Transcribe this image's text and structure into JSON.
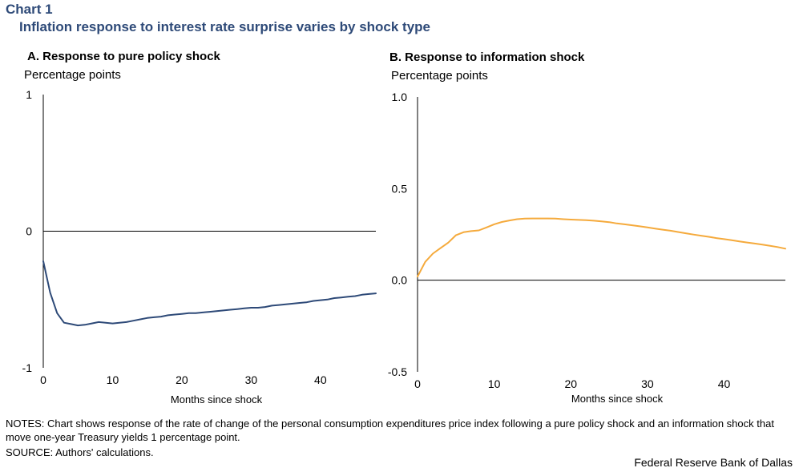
{
  "header": {
    "chart_label": "Chart 1",
    "title": "Inflation response to interest rate surprise varies by shock type"
  },
  "colors": {
    "panel_a_line": "#2e4a78",
    "panel_b_line": "#f5aa3c",
    "title": "#2e4a78"
  },
  "chart_data": [
    {
      "type": "line",
      "title": "A. Response to pure policy shock",
      "ylabel": "Percentage points",
      "xlabel": "Months since shock",
      "xlim": [
        0,
        48
      ],
      "ylim": [
        -1,
        1
      ],
      "x_ticks": [
        "0",
        "10",
        "20",
        "30",
        "40"
      ],
      "y_ticks": [
        "1",
        "0",
        "-1"
      ],
      "zero_line": true,
      "series": [
        {
          "x": [
            0,
            1,
            2,
            3,
            4,
            5,
            6,
            7,
            8,
            9,
            10,
            11,
            12,
            13,
            14,
            15,
            16,
            17,
            18,
            19,
            20,
            21,
            22,
            23,
            24,
            25,
            26,
            27,
            28,
            29,
            30,
            31,
            32,
            33,
            34,
            35,
            36,
            37,
            38,
            39,
            40,
            41,
            42,
            43,
            44,
            45,
            46,
            47,
            48
          ],
          "values": [
            -0.22,
            -0.45,
            -0.6,
            -0.67,
            -0.68,
            -0.69,
            -0.685,
            -0.675,
            -0.665,
            -0.67,
            -0.675,
            -0.67,
            -0.665,
            -0.655,
            -0.645,
            -0.635,
            -0.63,
            -0.625,
            -0.615,
            -0.61,
            -0.605,
            -0.6,
            -0.6,
            -0.595,
            -0.59,
            -0.585,
            -0.58,
            -0.575,
            -0.57,
            -0.565,
            -0.56,
            -0.56,
            -0.555,
            -0.545,
            -0.54,
            -0.535,
            -0.53,
            -0.525,
            -0.52,
            -0.51,
            -0.505,
            -0.5,
            -0.49,
            -0.485,
            -0.48,
            -0.475,
            -0.465,
            -0.46,
            -0.455
          ]
        }
      ]
    },
    {
      "type": "line",
      "title": "B. Response to information shock",
      "ylabel": "Percentage points",
      "xlabel": "Months since shock",
      "xlim": [
        0,
        48
      ],
      "ylim": [
        -0.5,
        1.0
      ],
      "x_ticks": [
        "0",
        "10",
        "20",
        "30",
        "40"
      ],
      "y_ticks": [
        "1.0",
        "0.5",
        "0.0",
        "-0.5"
      ],
      "zero_line": true,
      "series": [
        {
          "x": [
            0,
            1,
            2,
            3,
            4,
            5,
            6,
            7,
            8,
            9,
            10,
            11,
            12,
            13,
            14,
            15,
            16,
            17,
            18,
            19,
            20,
            21,
            22,
            23,
            24,
            25,
            26,
            27,
            28,
            29,
            30,
            31,
            32,
            33,
            34,
            35,
            36,
            37,
            38,
            39,
            40,
            41,
            42,
            43,
            44,
            45,
            46,
            47,
            48
          ],
          "values": [
            0.02,
            0.1,
            0.145,
            0.175,
            0.205,
            0.245,
            0.262,
            0.268,
            0.272,
            0.288,
            0.305,
            0.318,
            0.326,
            0.333,
            0.336,
            0.337,
            0.337,
            0.337,
            0.336,
            0.333,
            0.331,
            0.329,
            0.328,
            0.325,
            0.321,
            0.317,
            0.31,
            0.305,
            0.3,
            0.294,
            0.288,
            0.282,
            0.276,
            0.27,
            0.263,
            0.256,
            0.249,
            0.243,
            0.237,
            0.23,
            0.224,
            0.218,
            0.212,
            0.206,
            0.2,
            0.194,
            0.188,
            0.181,
            0.172
          ]
        }
      ]
    }
  ],
  "notes": "NOTES: Chart shows response of the rate of change of the personal consumption expenditures price index following a pure policy shock and an information shock that move one-year Treasury yields 1 percentage point.",
  "source": "SOURCE: Authors' calculations.",
  "credit": "Federal Reserve Bank of Dallas"
}
